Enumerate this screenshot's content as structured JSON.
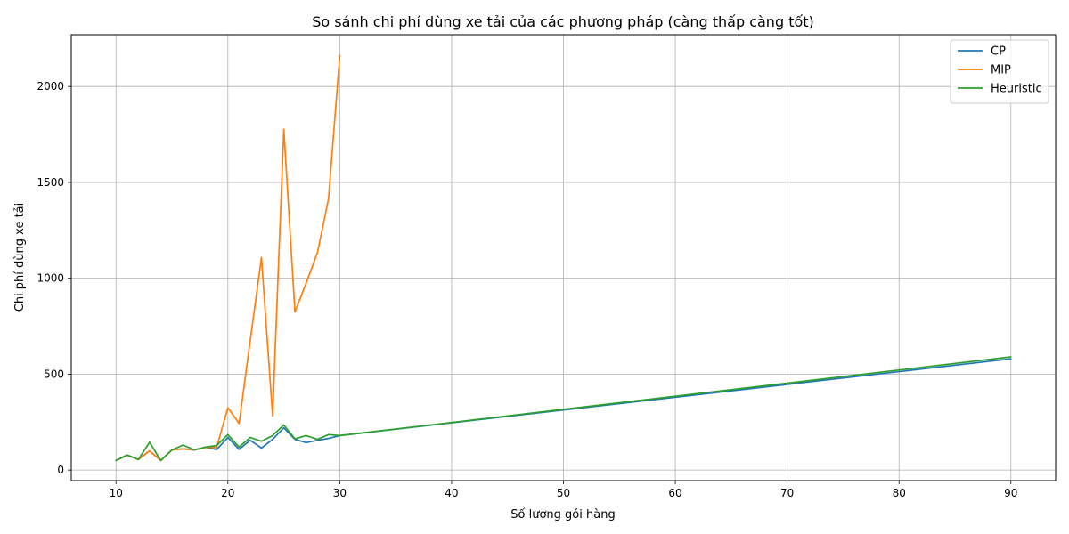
{
  "chart_data": {
    "type": "line",
    "title": "So sánh chi phí dùng xe tải của các phương pháp (càng thấp càng tốt)",
    "xlabel": "Số lượng gói hàng",
    "ylabel": "Chi phí dùng xe tải",
    "xlim": [
      6,
      94
    ],
    "ylim": [
      -55,
      2270
    ],
    "xticks": [
      10,
      20,
      30,
      40,
      50,
      60,
      70,
      80,
      90
    ],
    "yticks": [
      0,
      500,
      1000,
      1500,
      2000
    ],
    "grid": true,
    "legend_position": "top-right",
    "series": [
      {
        "name": "CP",
        "color": "#1f77b4",
        "x": [
          10,
          11,
          12,
          13,
          14,
          15,
          16,
          17,
          18,
          19,
          20,
          21,
          22,
          23,
          24,
          25,
          26,
          27,
          28,
          29,
          30,
          90
        ],
        "y": [
          50,
          78,
          55,
          100,
          50,
          105,
          110,
          105,
          118,
          107,
          170,
          108,
          155,
          115,
          160,
          220,
          160,
          143,
          155,
          165,
          180,
          580
        ]
      },
      {
        "name": "MIP",
        "color": "#ff7f0e",
        "x": [
          10,
          11,
          12,
          13,
          14,
          15,
          16,
          17,
          18,
          19,
          20,
          21,
          22,
          23,
          24,
          25,
          26,
          27,
          28,
          29,
          30
        ],
        "y": [
          50,
          78,
          55,
          100,
          50,
          105,
          110,
          105,
          118,
          118,
          325,
          243,
          676,
          1108,
          283,
          1777,
          825,
          975,
          1133,
          1415,
          2163
        ]
      },
      {
        "name": "Heuristic",
        "color": "#2ca02c",
        "x": [
          10,
          11,
          12,
          13,
          14,
          15,
          16,
          17,
          18,
          19,
          20,
          21,
          22,
          23,
          24,
          25,
          26,
          27,
          28,
          29,
          30,
          90
        ],
        "y": [
          50,
          78,
          55,
          145,
          50,
          105,
          130,
          105,
          120,
          128,
          185,
          120,
          170,
          150,
          180,
          235,
          163,
          180,
          160,
          185,
          180,
          590
        ]
      }
    ]
  }
}
